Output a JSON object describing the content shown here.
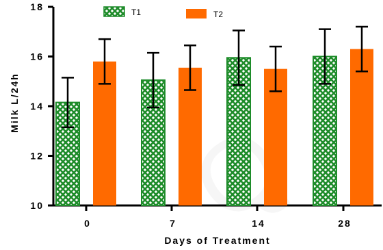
{
  "chart_data": {
    "type": "bar",
    "title": "",
    "xlabel": "Days of Treatment",
    "ylabel": "Milk L/24h",
    "categories": [
      "0",
      "7",
      "14",
      "28"
    ],
    "ylim": [
      10,
      18
    ],
    "yticks": [
      10,
      12,
      14,
      16,
      18
    ],
    "grid": false,
    "legend_position": "top",
    "error_bars": true,
    "series": [
      {
        "name": "T1",
        "values": [
          14.15,
          15.05,
          15.95,
          16.0
        ],
        "errors": [
          1.0,
          1.1,
          1.1,
          1.1
        ],
        "color": "#1e8c2a",
        "pattern": "crosshatch"
      },
      {
        "name": "T2",
        "values": [
          15.8,
          15.55,
          15.5,
          16.3
        ],
        "errors": [
          0.9,
          0.9,
          0.9,
          0.9
        ],
        "color": "#ff6a00",
        "pattern": "solid"
      }
    ]
  }
}
